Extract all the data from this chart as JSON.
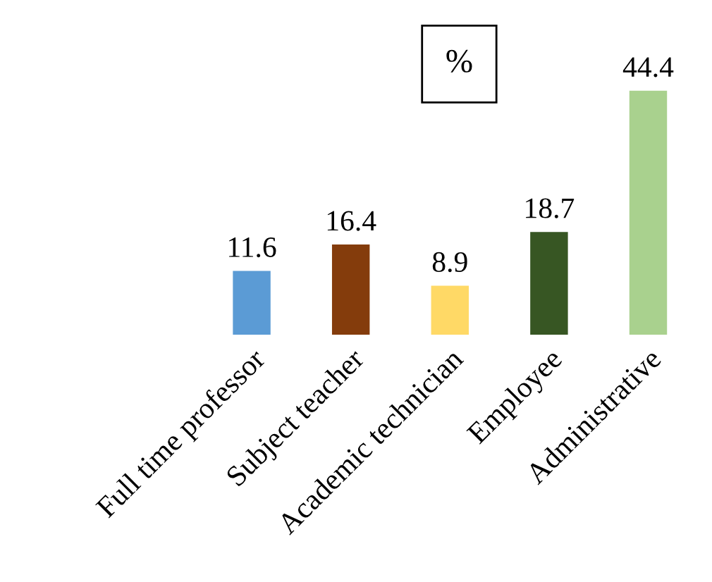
{
  "chart_data": {
    "type": "bar",
    "title": "%",
    "categories": [
      "Full time professor",
      "Subject teacher",
      "Academic technician",
      "Employee",
      "Administrative"
    ],
    "values": [
      11.6,
      16.4,
      8.9,
      18.7,
      44.4
    ],
    "colors": [
      "#5b9bd5",
      "#843c0c",
      "#ffd966",
      "#375623",
      "#a9d18e"
    ],
    "data_labels": true,
    "grid": false,
    "legend": false
  }
}
